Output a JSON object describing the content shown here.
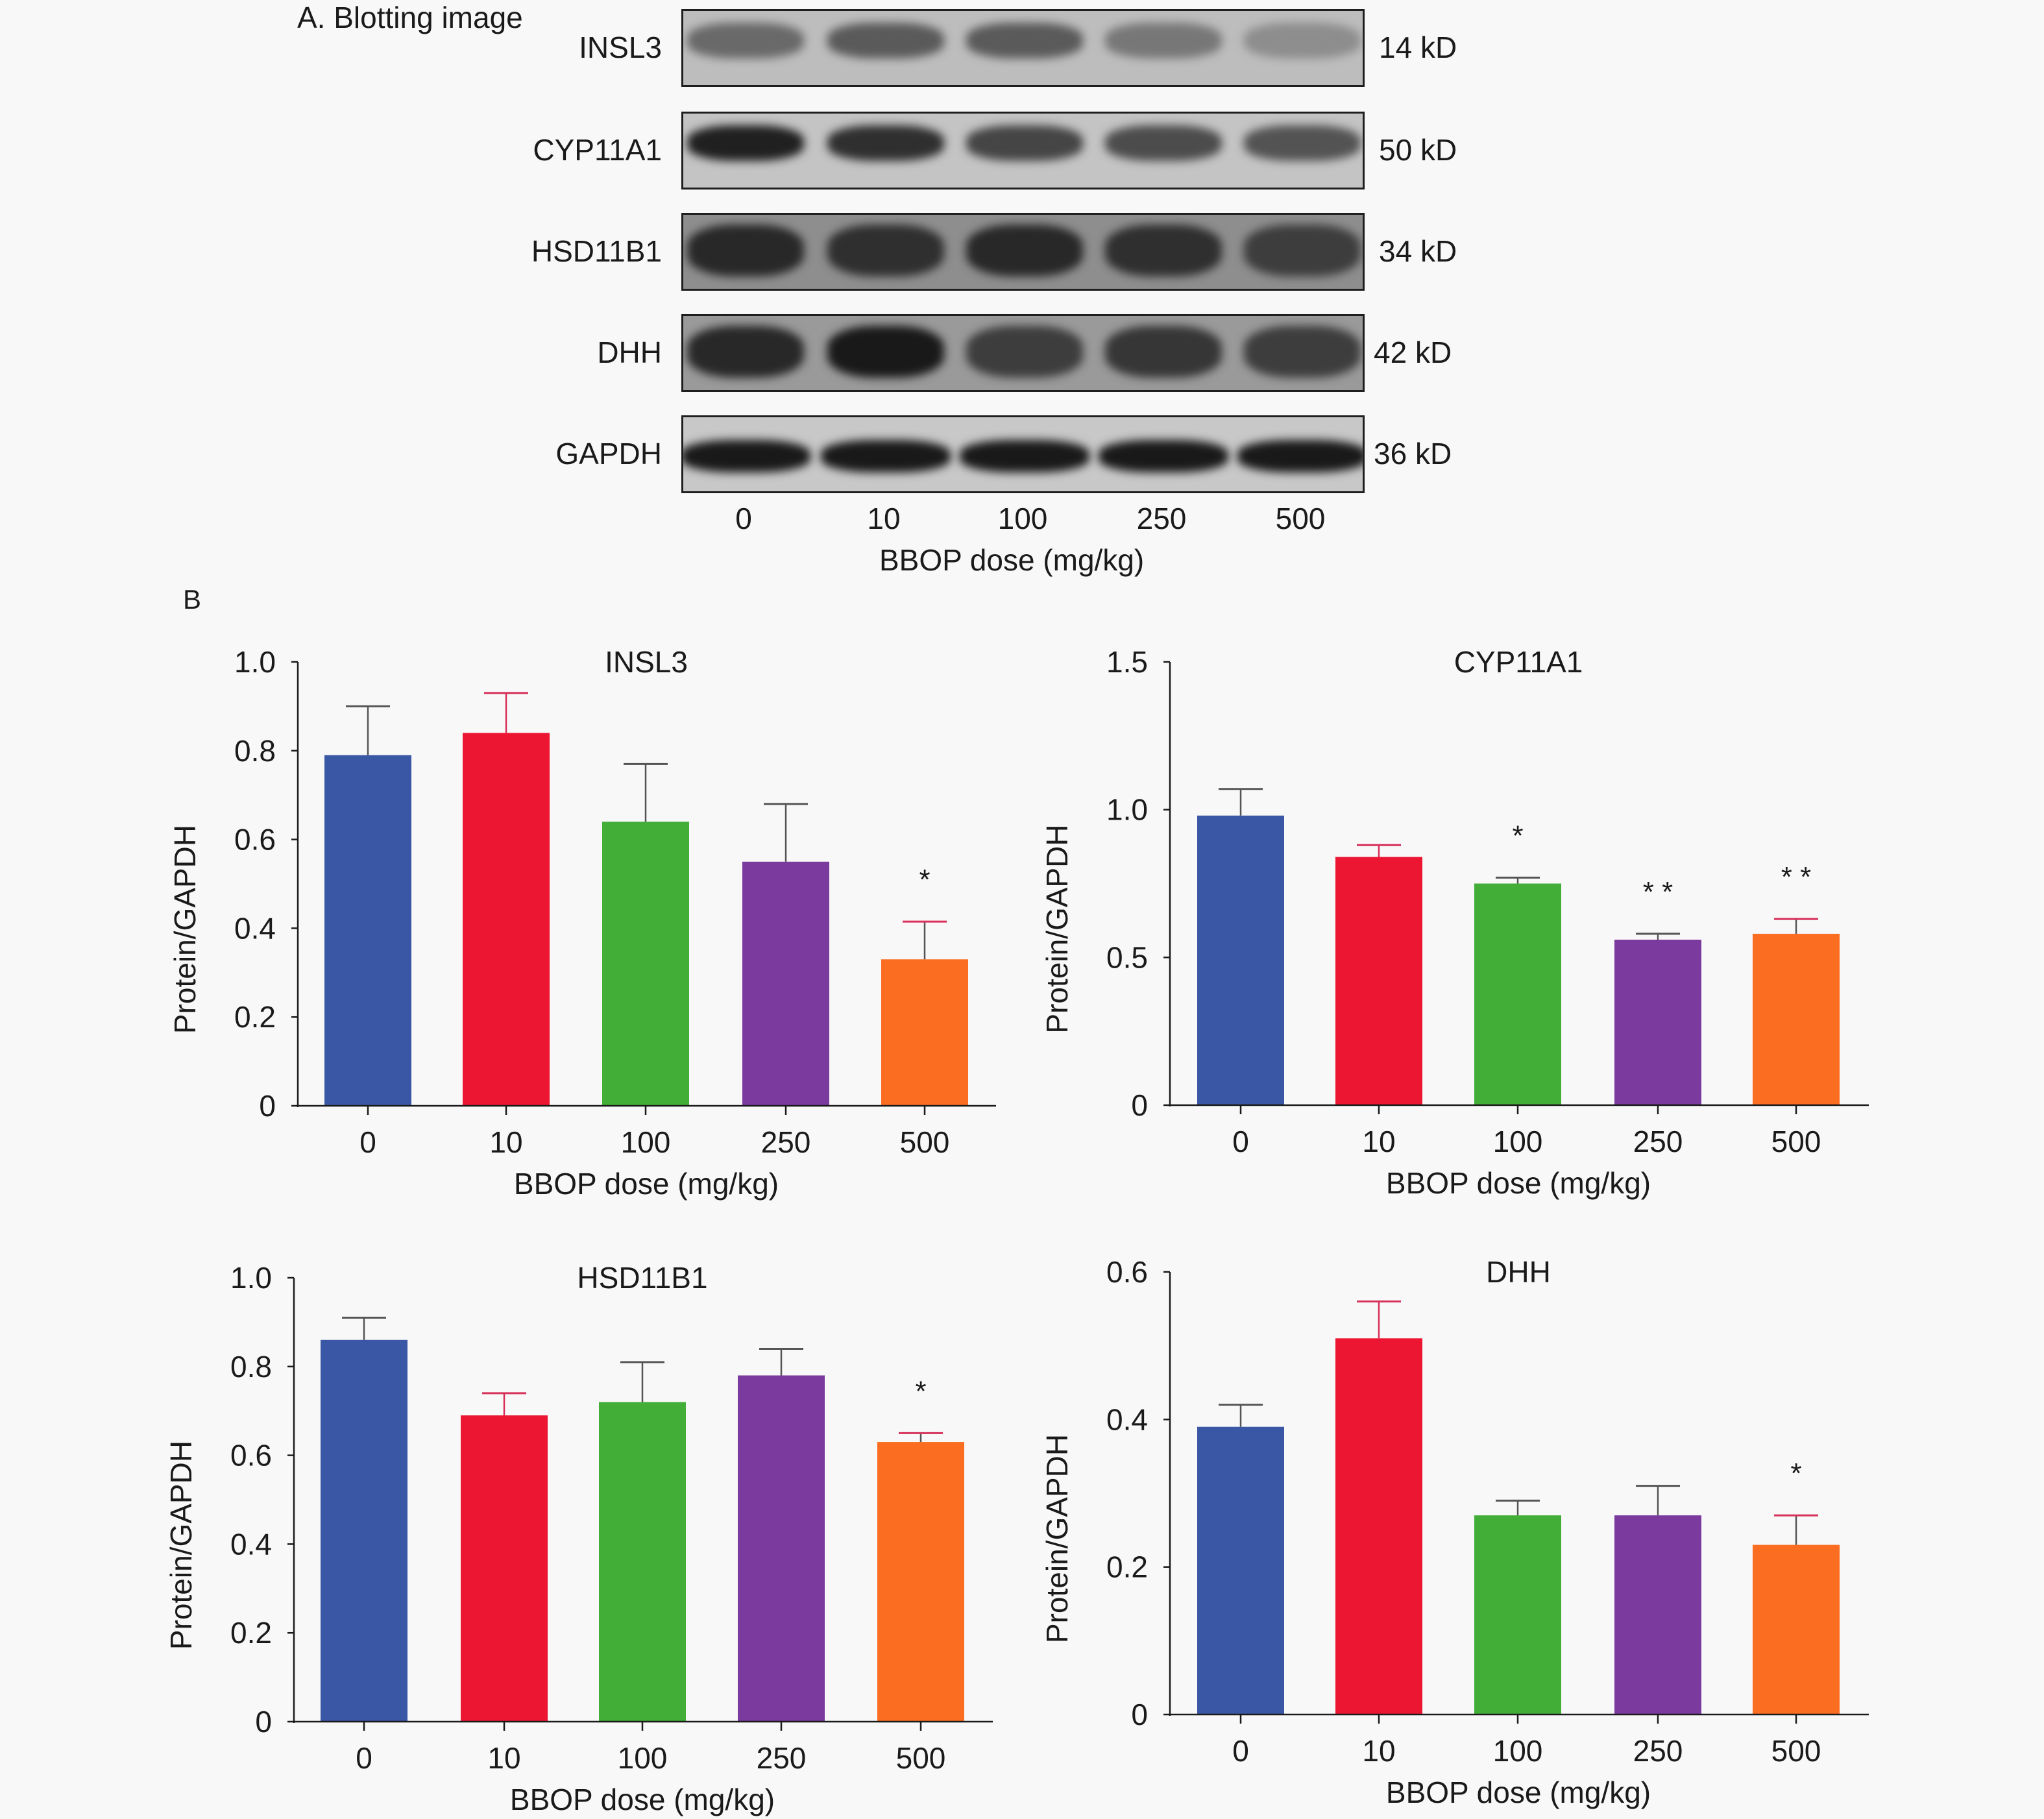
{
  "panel_a": {
    "title": "A. Blotting image",
    "rows": [
      {
        "protein": "INSL3",
        "weight": "14 kD",
        "bg": "#bdbdbd",
        "intensity": [
          0.45,
          0.55,
          0.55,
          0.35,
          0.2
        ]
      },
      {
        "protein": "CYP11A1",
        "weight": "50 kD",
        "bg": "#c4c4c4",
        "intensity": [
          0.95,
          0.85,
          0.7,
          0.65,
          0.6
        ]
      },
      {
        "protein": "HSD11B1",
        "weight": "34 kD",
        "bg": "#8e8e8e",
        "intensity": [
          0.9,
          0.85,
          0.9,
          0.85,
          0.75
        ]
      },
      {
        "protein": "DHH",
        "weight": "42 kD",
        "bg": "#9a9a9a",
        "intensity": [
          0.9,
          1.0,
          0.75,
          0.8,
          0.75
        ]
      },
      {
        "protein": "GAPDH",
        "weight": "36 kD",
        "bg": "#c8c8c8",
        "intensity": [
          1.0,
          1.0,
          1.0,
          1.0,
          1.0
        ]
      }
    ],
    "lanes": [
      "0",
      "10",
      "100",
      "250",
      "500"
    ],
    "xlabel": "BBOP dose (mg/kg)"
  },
  "panel_b": {
    "label": "B"
  },
  "colors": [
    "#3a57a5",
    "#ec1632",
    "#42ae38",
    "#7a3a9e",
    "#fb6d21"
  ],
  "chart_data": [
    {
      "type": "bar",
      "title": "INSL3",
      "xlabel": "BBOP dose (mg/kg)",
      "ylabel": "Protein/GAPDH",
      "categories": [
        "0",
        "10",
        "100",
        "250",
        "500"
      ],
      "values": [
        0.79,
        0.84,
        0.64,
        0.55,
        0.33
      ],
      "error_upper": [
        0.9,
        0.93,
        0.77,
        0.68,
        0.415
      ],
      "significance": [
        "",
        "",
        "",
        "",
        "*"
      ],
      "ylim": [
        0,
        1.0
      ],
      "yticks": [
        0,
        0.2,
        0.4,
        0.6,
        0.8,
        1.0
      ],
      "ytick_labels": [
        "0",
        "0.2",
        "0.4",
        "0.6",
        "0.8",
        "1.0"
      ]
    },
    {
      "type": "bar",
      "title": "CYP11A1",
      "xlabel": "BBOP dose (mg/kg)",
      "ylabel": "Protein/GAPDH",
      "categories": [
        "0",
        "10",
        "100",
        "250",
        "500"
      ],
      "values": [
        0.98,
        0.84,
        0.75,
        0.56,
        0.58
      ],
      "error_upper": [
        1.07,
        0.88,
        0.77,
        0.58,
        0.63
      ],
      "significance": [
        "",
        "",
        "*",
        "**",
        "**"
      ],
      "ylim": [
        0,
        1.5
      ],
      "yticks": [
        0,
        0.5,
        1.0,
        1.5
      ],
      "ytick_labels": [
        "0",
        "0.5",
        "1.0",
        "1.5"
      ]
    },
    {
      "type": "bar",
      "title": "HSD11B1",
      "xlabel": "BBOP dose (mg/kg)",
      "ylabel": "Protein/GAPDH",
      "categories": [
        "0",
        "10",
        "100",
        "250",
        "500"
      ],
      "values": [
        0.86,
        0.69,
        0.72,
        0.78,
        0.63
      ],
      "error_upper": [
        0.91,
        0.74,
        0.81,
        0.84,
        0.65
      ],
      "significance": [
        "",
        "",
        "",
        "",
        "*"
      ],
      "ylim": [
        0,
        1.0
      ],
      "yticks": [
        0,
        0.2,
        0.4,
        0.6,
        0.8,
        1.0
      ],
      "ytick_labels": [
        "0",
        "0.2",
        "0.4",
        "0.6",
        "0.8",
        "1.0"
      ]
    },
    {
      "type": "bar",
      "title": "DHH",
      "xlabel": "BBOP dose (mg/kg)",
      "ylabel": "Protein/GAPDH",
      "categories": [
        "0",
        "10",
        "100",
        "250",
        "500"
      ],
      "values": [
        0.39,
        0.51,
        0.27,
        0.27,
        0.23
      ],
      "error_upper": [
        0.42,
        0.56,
        0.29,
        0.31,
        0.27
      ],
      "significance": [
        "",
        "",
        "",
        "",
        "*"
      ],
      "ylim": [
        0,
        0.6
      ],
      "yticks": [
        0,
        0.2,
        0.4,
        0.6
      ],
      "ytick_labels": [
        "0",
        "0.2",
        "0.4",
        "0.6"
      ]
    }
  ]
}
